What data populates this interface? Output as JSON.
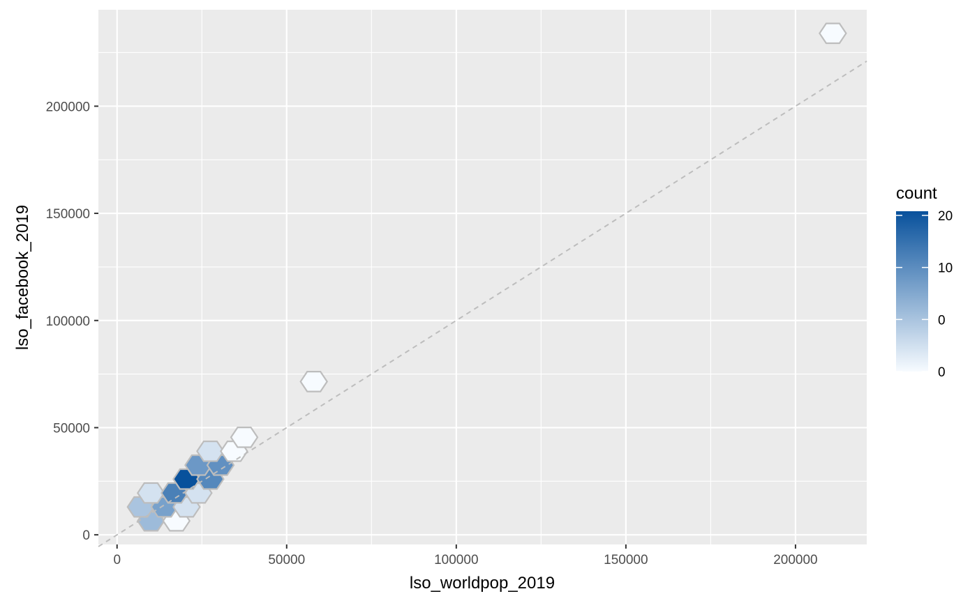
{
  "chart_data": {
    "type": "hexbin",
    "xlabel": "lso_worldpop_2019",
    "ylabel": "lso_facebook_2019",
    "xlim": [
      -5500,
      221000
    ],
    "ylim": [
      -4500,
      245000
    ],
    "x_ticks": [
      0,
      50000,
      100000,
      150000,
      200000
    ],
    "x_tick_labels": [
      "0",
      "50000",
      "100000",
      "150000",
      "200000"
    ],
    "y_ticks": [
      0,
      50000,
      100000,
      150000,
      200000
    ],
    "y_tick_labels": [
      "0",
      "50000",
      "100000",
      "150000",
      "200000"
    ],
    "grid": true,
    "reference_line": {
      "style": "dashed",
      "slope": 1,
      "intercept": 0,
      "color": "#bdbdbd"
    },
    "hex_outline_color": "#bdbdbd",
    "legend": {
      "title": "count",
      "position": "right",
      "tick_labels": [
        "20",
        "10",
        "0",
        "0"
      ],
      "color_low": "#f7fbff",
      "color_high": "#08519c"
    },
    "hexbins": [
      {
        "x": 10000,
        "y": 6500,
        "count": 7
      },
      {
        "x": 17500,
        "y": 6500,
        "count": 1
      },
      {
        "x": 7000,
        "y": 13000,
        "count": 6
      },
      {
        "x": 14000,
        "y": 13000,
        "count": 10
      },
      {
        "x": 20500,
        "y": 13000,
        "count": 3
      },
      {
        "x": 10000,
        "y": 19500,
        "count": 3
      },
      {
        "x": 17000,
        "y": 19500,
        "count": 14
      },
      {
        "x": 24000,
        "y": 19500,
        "count": 3
      },
      {
        "x": 20500,
        "y": 26000,
        "count": 20
      },
      {
        "x": 27500,
        "y": 26000,
        "count": 13
      },
      {
        "x": 24000,
        "y": 32500,
        "count": 11
      },
      {
        "x": 30500,
        "y": 32500,
        "count": 12
      },
      {
        "x": 27500,
        "y": 39000,
        "count": 3
      },
      {
        "x": 34500,
        "y": 39000,
        "count": 1
      },
      {
        "x": 37500,
        "y": 45500,
        "count": 1
      },
      {
        "x": 58000,
        "y": 71500,
        "count": 1
      },
      {
        "x": 211000,
        "y": 234000,
        "count": 1
      }
    ]
  }
}
